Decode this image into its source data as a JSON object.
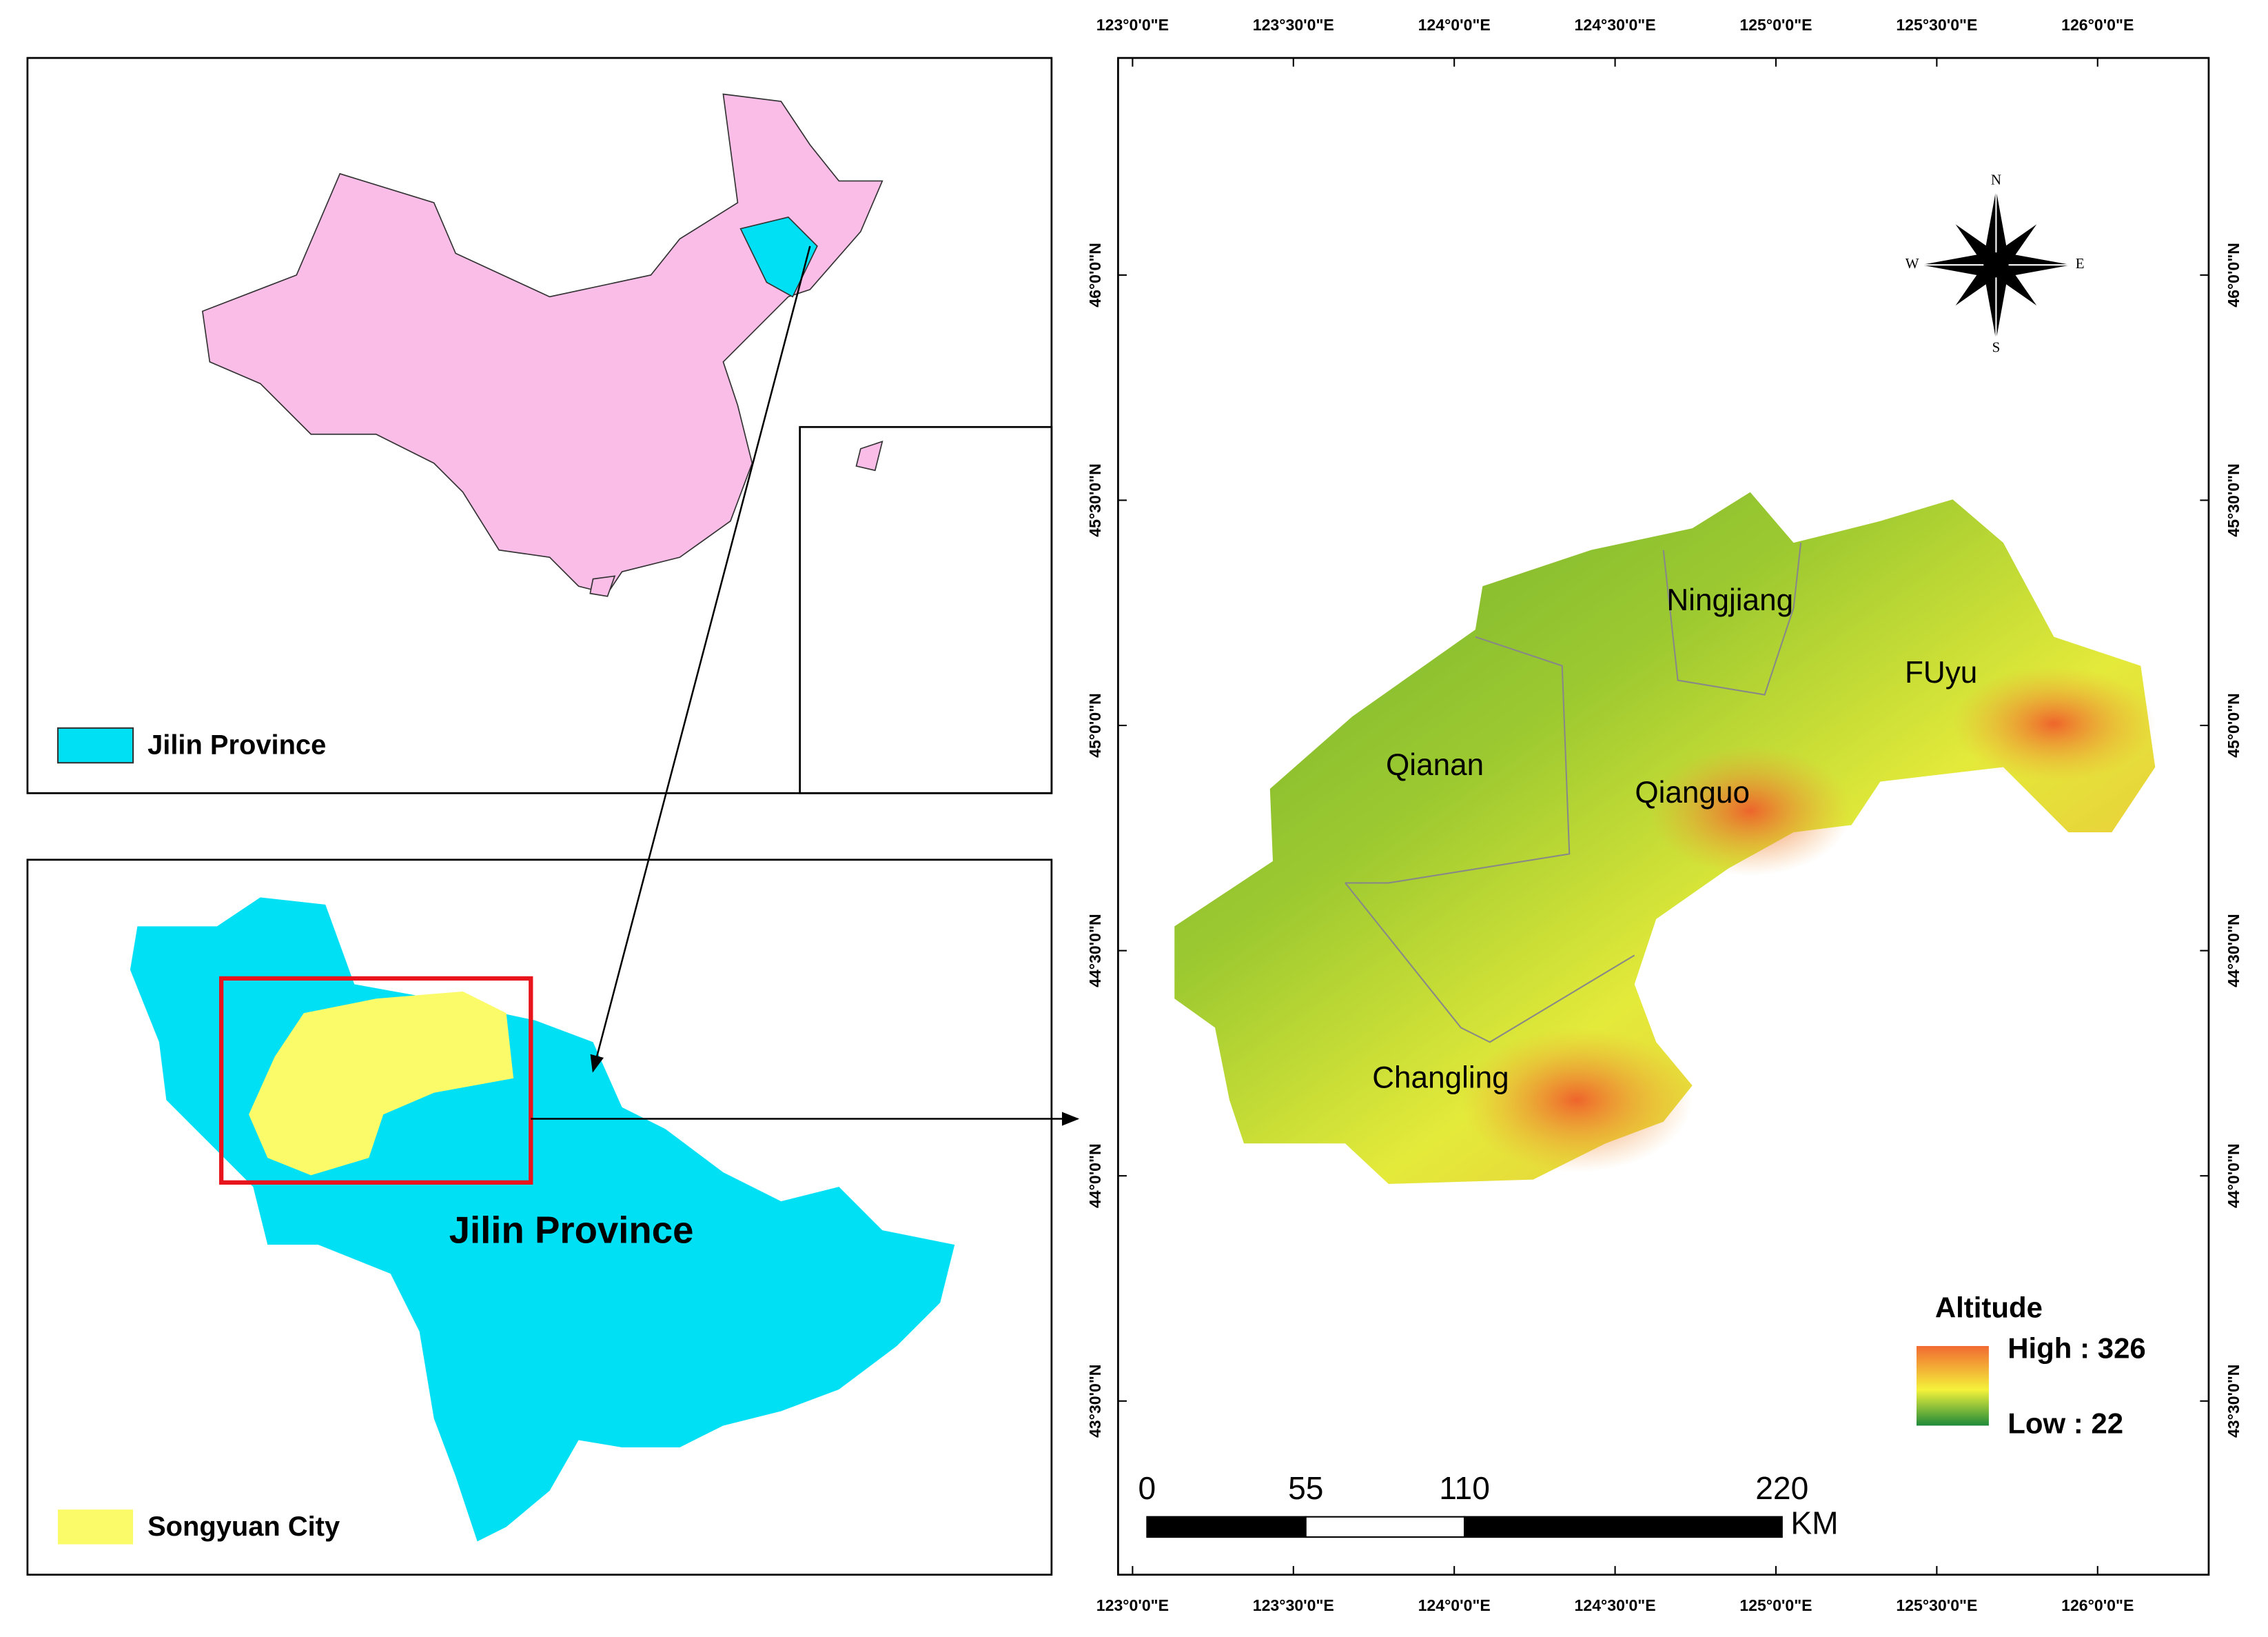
{
  "china_inset": {
    "legend_label": "Jilin Province"
  },
  "jilin_inset": {
    "region_label": "Jilin Province",
    "legend_label": "Songyuan City"
  },
  "main_map": {
    "x_labels": [
      "123°0'0\"E",
      "123°30'0\"E",
      "124°0'0\"E",
      "124°30'0\"E",
      "125°0'0\"E",
      "125°30'0\"E",
      "126°0'0\"E"
    ],
    "y_labels": [
      "46°0'0\"N",
      "45°30'0\"N",
      "45°0'0\"N",
      "44°30'0\"N",
      "44°0'0\"N",
      "43°30'0\"N"
    ],
    "counties": [
      "Ningjiang",
      "FUyu",
      "Qianan",
      "Qianguo",
      "Changling"
    ],
    "compass": {
      "n": "N",
      "s": "S",
      "e": "E",
      "w": "W"
    },
    "legend": {
      "title": "Altitude",
      "high": "High : 326",
      "low": "Low : 22"
    },
    "scale_bar": {
      "ticks": [
        0,
        55,
        110,
        220
      ],
      "unit": "KM"
    }
  }
}
